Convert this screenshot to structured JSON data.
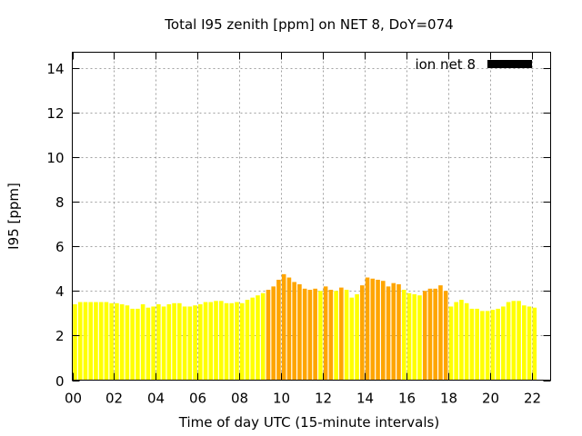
{
  "chart_data": {
    "type": "bar",
    "title": "Total I95 zenith [ppm] on NET 8, DoY=074",
    "xlabel": "Time of day UTC (15-minute intervals)",
    "ylabel": "I95 [ppm]",
    "xlim": [
      0,
      22.9
    ],
    "ylim": [
      0,
      14.7
    ],
    "yticks": [
      0,
      2,
      4,
      6,
      8,
      10,
      12,
      14
    ],
    "xticks": [
      0,
      2,
      4,
      6,
      8,
      10,
      12,
      14,
      16,
      18,
      20,
      22
    ],
    "xtick_labels": [
      "00",
      "02",
      "04",
      "06",
      "08",
      "10",
      "12",
      "14",
      "16",
      "18",
      "20",
      "22"
    ],
    "grid": true,
    "legend": {
      "position": "top-right",
      "entries": [
        "ion net 8"
      ]
    },
    "bar_width_hours": 0.2,
    "interval_hours": 0.25,
    "colors": {
      "low": "#ffff00",
      "high": "#ffa500",
      "legend_swatch": "#000000"
    },
    "series": [
      {
        "name": "ion net 8",
        "values": [
          3.4,
          3.5,
          3.5,
          3.5,
          3.5,
          3.5,
          3.5,
          3.45,
          3.45,
          3.4,
          3.35,
          3.2,
          3.2,
          3.4,
          3.25,
          3.3,
          3.4,
          3.3,
          3.4,
          3.45,
          3.45,
          3.3,
          3.3,
          3.35,
          3.4,
          3.5,
          3.5,
          3.55,
          3.55,
          3.45,
          3.45,
          3.5,
          3.45,
          3.6,
          3.7,
          3.8,
          3.9,
          4.05,
          4.2,
          4.5,
          4.75,
          4.6,
          4.4,
          4.3,
          4.1,
          4.05,
          4.1,
          4.0,
          4.2,
          4.05,
          4.0,
          4.15,
          4.05,
          3.7,
          3.85,
          4.25,
          4.6,
          4.55,
          4.5,
          4.45,
          4.2,
          4.35,
          4.3,
          4.05,
          3.9,
          3.85,
          3.8,
          4.0,
          4.1,
          4.1,
          4.25,
          4.0,
          3.3,
          3.5,
          3.6,
          3.45,
          3.2,
          3.2,
          3.1,
          3.1,
          3.15,
          3.2,
          3.3,
          3.5,
          3.55,
          3.55,
          3.35,
          3.3,
          3.25
        ],
        "levels": [
          "low",
          "low",
          "low",
          "low",
          "low",
          "low",
          "low",
          "low",
          "low",
          "low",
          "low",
          "low",
          "low",
          "low",
          "low",
          "low",
          "low",
          "low",
          "low",
          "low",
          "low",
          "low",
          "low",
          "low",
          "low",
          "low",
          "low",
          "low",
          "low",
          "low",
          "low",
          "low",
          "low",
          "low",
          "low",
          "low",
          "low",
          "high",
          "high",
          "high",
          "high",
          "high",
          "high",
          "high",
          "high",
          "high",
          "high",
          "low",
          "high",
          "high",
          "low",
          "high",
          "low",
          "low",
          "low",
          "high",
          "high",
          "high",
          "high",
          "high",
          "high",
          "high",
          "high",
          "low",
          "low",
          "low",
          "low",
          "high",
          "high",
          "high",
          "high",
          "high",
          "low",
          "low",
          "low",
          "low",
          "low",
          "low",
          "low",
          "low",
          "low",
          "low",
          "low",
          "low",
          "low",
          "low",
          "low",
          "low",
          "low"
        ]
      }
    ]
  }
}
